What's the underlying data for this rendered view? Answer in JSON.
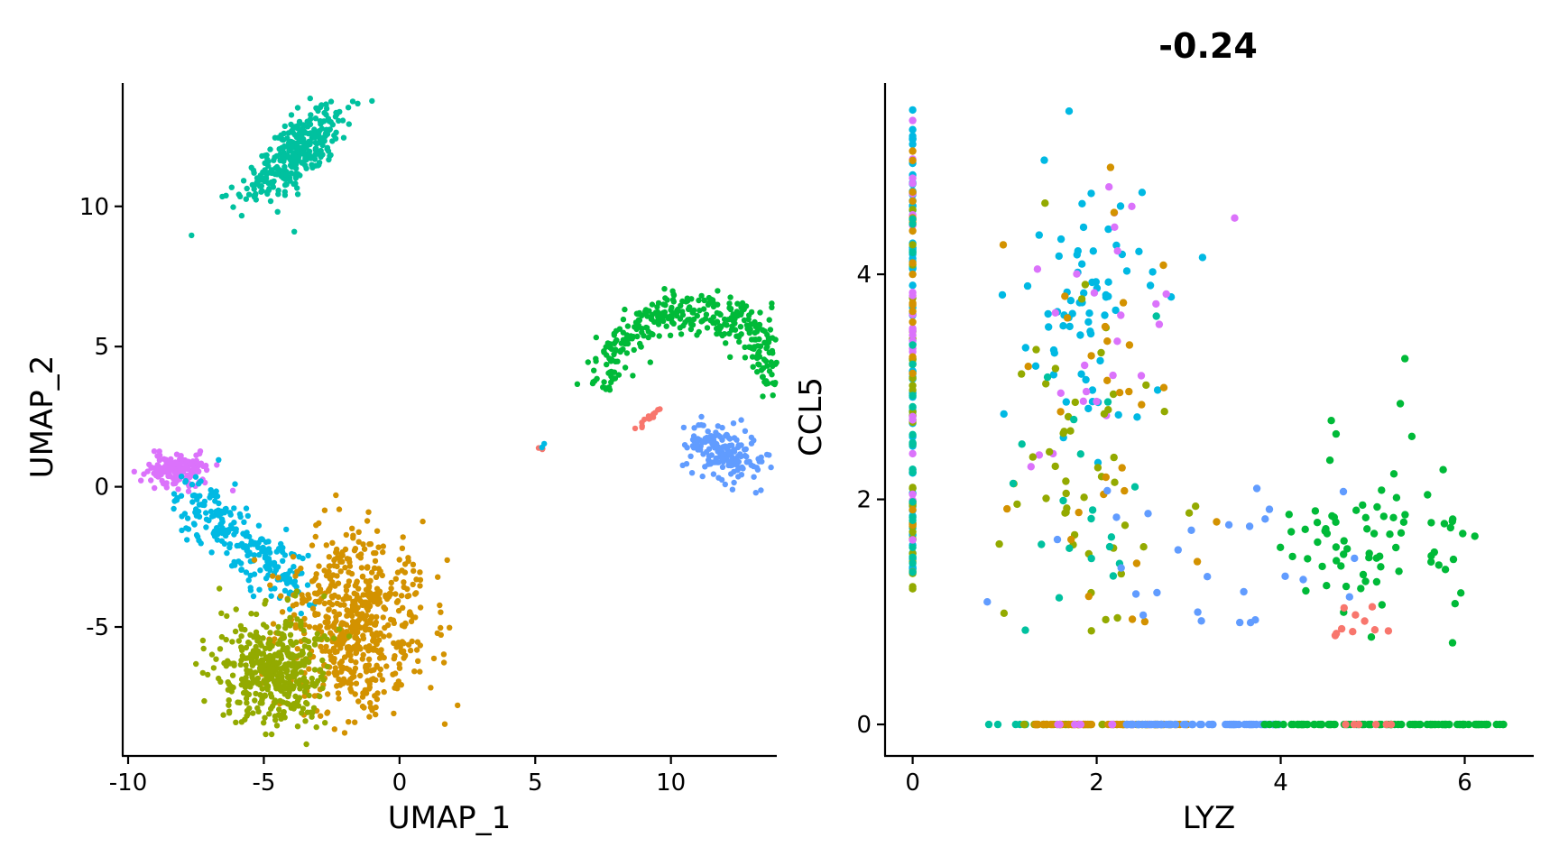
{
  "chart_data": [
    {
      "type": "scatter",
      "title": "",
      "xlabel": "UMAP_1",
      "ylabel": "UMAP_2",
      "xlim": [
        -10.2,
        13.9
      ],
      "ylim": [
        -9.6,
        14.4
      ],
      "grid": false,
      "x_ticks": [
        -10,
        -5,
        0,
        5,
        10
      ],
      "x_tick_labels": [
        "-10",
        "-5",
        "0",
        "5",
        "10"
      ],
      "y_ticks": [
        -5,
        0,
        5,
        10
      ],
      "y_tick_labels": [
        "-5",
        "0",
        "5",
        "10"
      ],
      "cluster_colors": {
        "0": "#F8766D",
        "1": "#D39200",
        "2": "#93AA00",
        "3": "#00BA38",
        "4": "#00C19F",
        "5": "#00B9E3",
        "6": "#619CFF",
        "7": "#DB72FB"
      },
      "clusters": [
        {
          "cluster": "4",
          "center": [
            -3.8,
            11.9
          ],
          "spread": [
            1.2,
            0.5
          ],
          "angle_deg": 40,
          "n": 320
        },
        {
          "cluster": "3",
          "arc": {
            "center": [
              10.8,
              2.9
            ],
            "radius": 3.4,
            "start_deg": 170,
            "end_deg": 5,
            "width": 1.2
          },
          "n": 380
        },
        {
          "cluster": "6",
          "center": [
            12.0,
            1.2
          ],
          "spread": [
            0.45,
            0.8
          ],
          "angle_deg": 70,
          "n": 160
        },
        {
          "cluster": "0",
          "line": {
            "from": [
              8.7,
              2.1
            ],
            "to": [
              9.6,
              2.8
            ]
          },
          "n": 14
        },
        {
          "cluster": "0",
          "center": [
            5.3,
            1.4
          ],
          "spread": [
            0.08,
            0.08
          ],
          "angle_deg": 0,
          "n": 3
        },
        {
          "cluster": "5",
          "center": [
            5.3,
            1.4
          ],
          "spread": [
            0.06,
            0.06
          ],
          "angle_deg": 0,
          "n": 2
        },
        {
          "cluster": "7",
          "center": [
            -8.2,
            0.6
          ],
          "spread": [
            0.6,
            0.3
          ],
          "angle_deg": 0,
          "n": 160
        },
        {
          "cluster": "5",
          "line": {
            "from": [
              -7.8,
              -0.2
            ],
            "to": [
              -3.8,
              -3.6
            ]
          },
          "jitter": 0.55,
          "n": 240
        },
        {
          "cluster": "1",
          "center": [
            -1.6,
            -4.9
          ],
          "spread": [
            1.3,
            1.6
          ],
          "angle_deg": 0,
          "n": 620
        },
        {
          "cluster": "2",
          "center": [
            -4.6,
            -6.5
          ],
          "spread": [
            1.0,
            1.0
          ],
          "angle_deg": 0,
          "n": 420
        }
      ]
    },
    {
      "type": "scatter",
      "title": "-0.24",
      "xlabel": "LYZ",
      "ylabel": "CCL5",
      "xlim": [
        -0.3,
        6.75
      ],
      "ylim": [
        -0.28,
        5.7
      ],
      "grid": false,
      "x_ticks": [
        0,
        2,
        4,
        6
      ],
      "x_tick_labels": [
        "0",
        "2",
        "4",
        "6"
      ],
      "y_ticks": [
        0,
        2,
        4
      ],
      "y_tick_labels": [
        "0",
        "2",
        "4"
      ],
      "groups": [
        {
          "cluster": "5",
          "x": 0.0,
          "y_range": [
            1.35,
            5.6
          ],
          "n": 90
        },
        {
          "cluster": "2",
          "x": 0.0,
          "y_range": [
            1.2,
            4.8
          ],
          "n": 35
        },
        {
          "cluster": "7",
          "x": 0.0,
          "y_range": [
            1.4,
            5.5
          ],
          "n": 25
        },
        {
          "cluster": "1",
          "x": 0.0,
          "y_range": [
            1.3,
            5.3
          ],
          "n": 20
        },
        {
          "cluster": "4",
          "x": 0.0,
          "y_range": [
            1.3,
            4.5
          ],
          "n": 20
        },
        {
          "cluster": "4",
          "y": 0.0,
          "x_range": [
            0.8,
            1.6
          ],
          "n": 8
        },
        {
          "cluster": "2",
          "y": 0.0,
          "x_range": [
            1.2,
            2.9
          ],
          "n": 50
        },
        {
          "cluster": "1",
          "y": 0.0,
          "x_range": [
            1.3,
            3.0
          ],
          "n": 50
        },
        {
          "cluster": "7",
          "y": 0.0,
          "x_range": [
            1.5,
            2.7
          ],
          "n": 12
        },
        {
          "cluster": "6",
          "y": 0.0,
          "x_range": [
            2.2,
            4.0
          ],
          "n": 80
        },
        {
          "cluster": "3",
          "y": 0.0,
          "x_range": [
            3.8,
            6.45
          ],
          "n": 110
        },
        {
          "cluster": "0",
          "y": 0.0,
          "x_range": [
            4.6,
            5.4
          ],
          "n": 6
        },
        {
          "cluster": "5",
          "center": [
            1.9,
            3.7
          ],
          "spread": [
            0.3,
            0.55
          ],
          "n": 70
        },
        {
          "cluster": "7",
          "center": [
            1.9,
            3.4
          ],
          "spread": [
            0.45,
            0.7
          ],
          "n": 25
        },
        {
          "cluster": "2",
          "center": [
            1.9,
            2.4
          ],
          "spread": [
            0.55,
            1.0
          ],
          "n": 50
        },
        {
          "cluster": "1",
          "center": [
            2.1,
            2.5
          ],
          "spread": [
            0.55,
            1.0
          ],
          "n": 30
        },
        {
          "cluster": "4",
          "center": [
            2.0,
            2.0
          ],
          "spread": [
            0.45,
            0.8
          ],
          "n": 20
        },
        {
          "cluster": "6",
          "center": [
            3.0,
            1.45
          ],
          "spread": [
            0.9,
            0.3
          ],
          "n": 28
        },
        {
          "cluster": "3",
          "center": [
            5.0,
            1.6
          ],
          "spread": [
            0.55,
            0.4
          ],
          "n": 75
        },
        {
          "cluster": "0",
          "center": [
            4.9,
            0.95
          ],
          "spread": [
            0.3,
            0.12
          ],
          "n": 10
        }
      ],
      "outliers": [
        {
          "cluster": "3",
          "x": 5.35,
          "y": 3.25
        },
        {
          "cluster": "3",
          "x": 5.3,
          "y": 2.85
        },
        {
          "cluster": "3",
          "x": 4.55,
          "y": 2.7
        },
        {
          "cluster": "7",
          "x": 3.5,
          "y": 4.5
        },
        {
          "cluster": "5",
          "x": 3.15,
          "y": 4.15
        },
        {
          "cluster": "1",
          "x": 2.15,
          "y": 4.95
        },
        {
          "cluster": "5",
          "x": 1.7,
          "y": 5.45
        }
      ]
    }
  ]
}
